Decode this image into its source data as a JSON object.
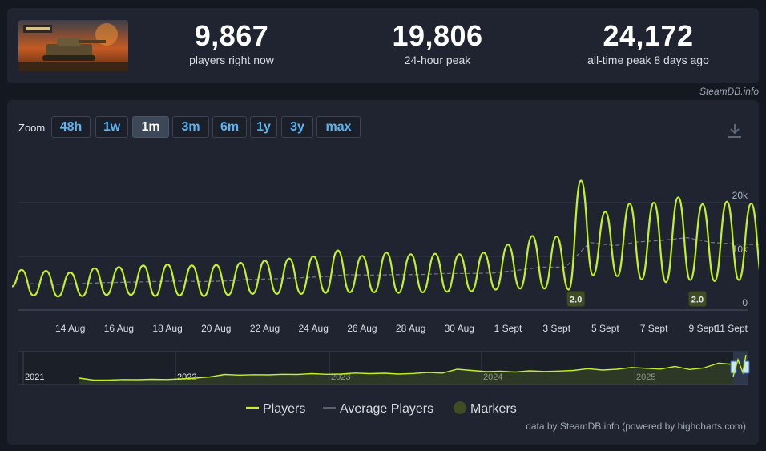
{
  "stats": [
    {
      "value": "9,867",
      "label": "players right now"
    },
    {
      "value": "19,806",
      "label": "24-hour peak"
    },
    {
      "value": "24,172",
      "label": "all-time peak 8 days ago"
    }
  ],
  "source": "SteamDB.info",
  "zoom": {
    "label": "Zoom",
    "buttons": [
      "48h",
      "1w",
      "1m",
      "3m",
      "6m",
      "1y",
      "3y",
      "max"
    ],
    "active": "1m"
  },
  "credit": "data by SteamDB.info (powered by highcharts.com)",
  "colors": {
    "players": "#c3f222",
    "average": "#6c7686",
    "markers": "#3e4d24",
    "accent": "#5bb4f0"
  },
  "chart_data": {
    "type": "line",
    "x_labels": [
      "14 Aug",
      "16 Aug",
      "18 Aug",
      "20 Aug",
      "22 Aug",
      "24 Aug",
      "26 Aug",
      "28 Aug",
      "30 Aug",
      "1 Sept",
      "3 Sept",
      "5 Sept",
      "7 Sept",
      "9 Sept",
      "11 Sept"
    ],
    "y_ticks": [
      "0",
      "10k",
      "20k"
    ],
    "ylim": [
      0,
      20000
    ],
    "legend": [
      "Players",
      "Average Players",
      "Markers"
    ],
    "legend_position": "bottom",
    "grid": true,
    "series": [
      {
        "name": "Players",
        "daily": [
          {
            "day": "12 Aug",
            "peak": 7500,
            "low": 2700
          },
          {
            "day": "13 Aug",
            "peak": 7300,
            "low": 2500
          },
          {
            "day": "14 Aug",
            "peak": 7000,
            "low": 2600
          },
          {
            "day": "15 Aug",
            "peak": 7800,
            "low": 2800
          },
          {
            "day": "16 Aug",
            "peak": 8000,
            "low": 2800
          },
          {
            "day": "17 Aug",
            "peak": 8300,
            "low": 2600
          },
          {
            "day": "18 Aug",
            "peak": 8500,
            "low": 2700
          },
          {
            "day": "19 Aug",
            "peak": 8300,
            "low": 2600
          },
          {
            "day": "20 Aug",
            "peak": 8400,
            "low": 2800
          },
          {
            "day": "21 Aug",
            "peak": 8800,
            "low": 3000
          },
          {
            "day": "22 Aug",
            "peak": 9200,
            "low": 3000
          },
          {
            "day": "23 Aug",
            "peak": 9600,
            "low": 3000
          },
          {
            "day": "24 Aug",
            "peak": 10000,
            "low": 3200
          },
          {
            "day": "25 Aug",
            "peak": 11100,
            "low": 3300
          },
          {
            "day": "26 Aug",
            "peak": 10100,
            "low": 3300
          },
          {
            "day": "27 Aug",
            "peak": 10700,
            "low": 3200
          },
          {
            "day": "28 Aug",
            "peak": 10400,
            "low": 3300
          },
          {
            "day": "29 Aug",
            "peak": 10500,
            "low": 3400
          },
          {
            "day": "30 Aug",
            "peak": 10400,
            "low": 3500
          },
          {
            "day": "31 Aug",
            "peak": 10700,
            "low": 3800
          },
          {
            "day": "1 Sept",
            "peak": 12200,
            "low": 4000
          },
          {
            "day": "2 Sept",
            "peak": 13800,
            "low": 4000
          },
          {
            "day": "3 Sept",
            "peak": 13700,
            "low": 3800
          },
          {
            "day": "4 Sept",
            "peak": 24100,
            "low": 6500
          },
          {
            "day": "5 Sept",
            "peak": 18300,
            "low": 6300
          },
          {
            "day": "6 Sept",
            "peak": 19800,
            "low": 5700
          },
          {
            "day": "7 Sept",
            "peak": 20000,
            "low": 5200
          },
          {
            "day": "8 Sept",
            "peak": 21000,
            "low": 5600
          },
          {
            "day": "9 Sept",
            "peak": 19700,
            "low": 5400
          },
          {
            "day": "10 Sept",
            "peak": 20200,
            "low": 5600
          },
          {
            "day": "11 Sept",
            "peak": 19800,
            "low": 5200
          }
        ]
      },
      {
        "name": "Average Players",
        "values": [
          4900,
          4800,
          4900,
          5100,
          5200,
          5300,
          5400,
          5300,
          5400,
          5700,
          5800,
          6000,
          6200,
          6600,
          6500,
          6600,
          6600,
          6800,
          6800,
          6900,
          7400,
          8000,
          8000,
          12600,
          12000,
          12700,
          13000,
          13500,
          12600,
          12300,
          12200
        ]
      }
    ],
    "markers": [
      {
        "x": "3 Sept",
        "label": "2.0"
      },
      {
        "x": "8 Sept",
        "label": "2.0"
      }
    ],
    "navigator": {
      "labels": [
        "2021",
        "2022",
        "2023",
        "2024",
        "2025"
      ]
    }
  }
}
